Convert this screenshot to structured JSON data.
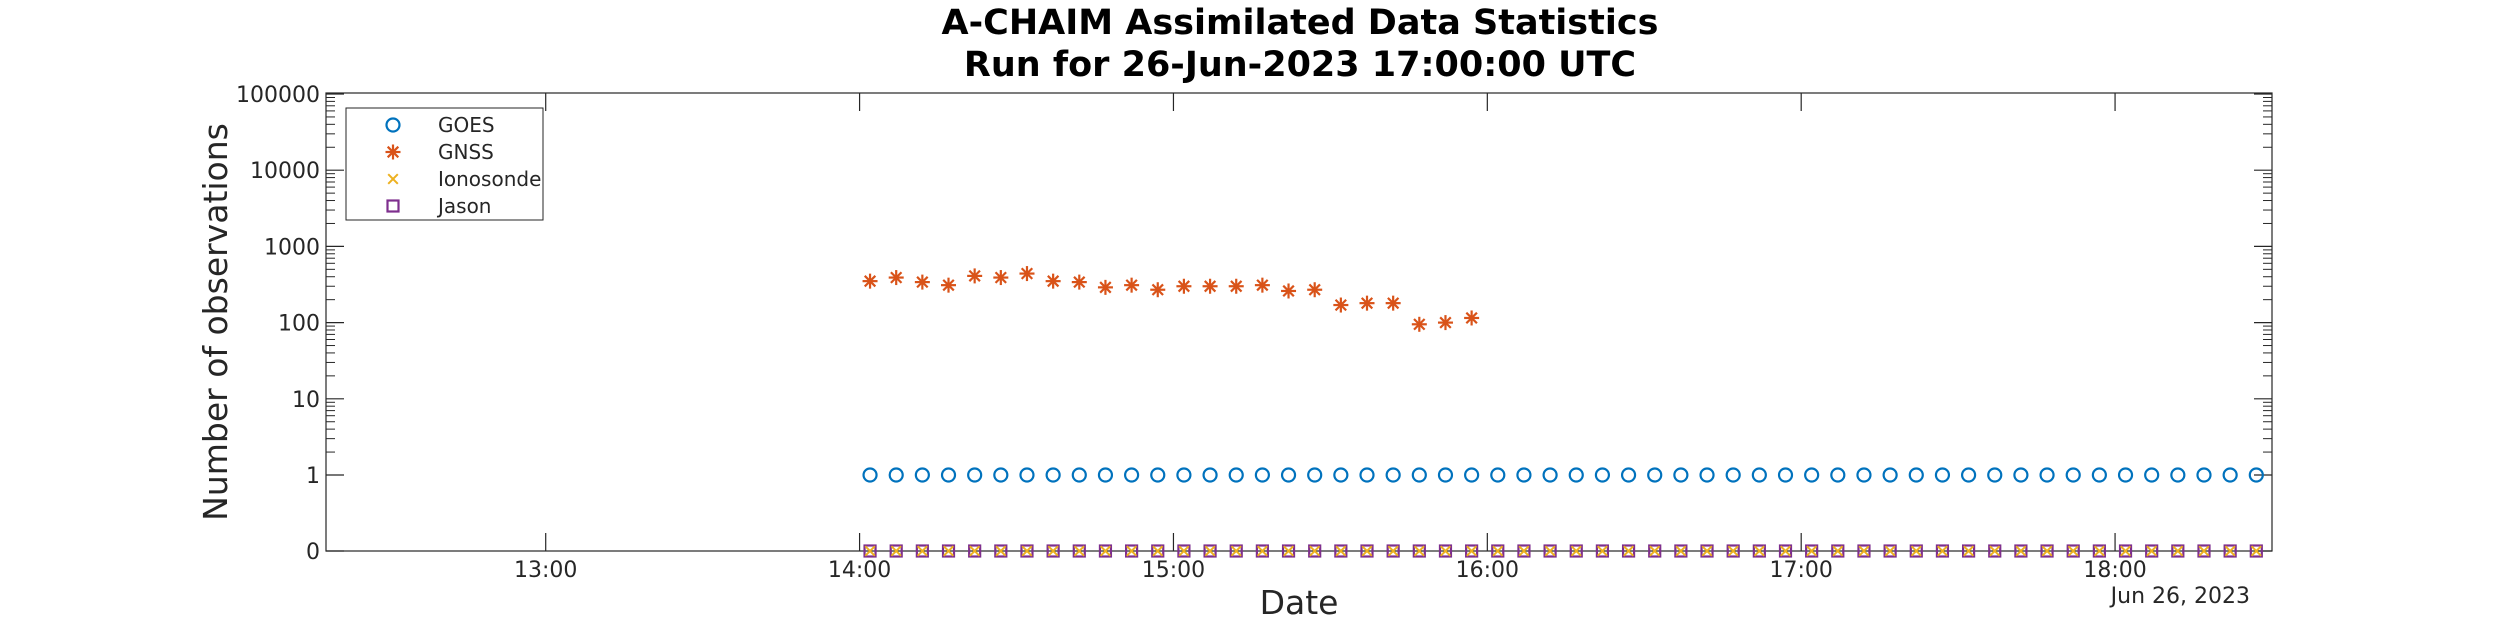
{
  "chart_data": {
    "type": "scatter",
    "title": [
      "A-CHAIM Assimilated Data Statistics",
      "Run for 26-Jun-2023 17:00:00 UTC"
    ],
    "xlabel": "Date",
    "ylabel": "Number of observations",
    "x_axis": {
      "type": "time",
      "range": [
        "12:18",
        "18:30"
      ],
      "ticks": [
        "13:00",
        "14:00",
        "15:00",
        "16:00",
        "17:00",
        "18:00"
      ],
      "date_label": "Jun 26, 2023"
    },
    "y_axis": {
      "scale": "log",
      "tick_labels": [
        "0",
        "1",
        "10",
        "100",
        "1000",
        "10000",
        "100000"
      ]
    },
    "grid": false,
    "legend": {
      "placement": "top-left",
      "entries": [
        "GOES",
        "GNSS",
        "Ionosonde",
        "Jason"
      ]
    },
    "series": [
      {
        "name": "GOES",
        "marker": "circle",
        "color": "#0072BD",
        "time_range": [
          "14:02",
          "18:30"
        ],
        "interval_minutes": 5,
        "value": 1
      },
      {
        "name": "GNSS",
        "marker": "asterisk",
        "color": "#D95319",
        "x": [
          "14:02",
          "14:07",
          "14:12",
          "14:17",
          "14:22",
          "14:27",
          "14:32",
          "14:37",
          "14:42",
          "14:47",
          "14:52",
          "14:57",
          "15:02",
          "15:07",
          "15:12",
          "15:17",
          "15:22",
          "15:27",
          "15:32",
          "15:37",
          "15:42",
          "15:47",
          "15:52",
          "15:57"
        ],
        "y": [
          350,
          390,
          340,
          310,
          410,
          390,
          440,
          350,
          340,
          290,
          310,
          270,
          300,
          300,
          300,
          310,
          260,
          270,
          170,
          180,
          180,
          95,
          100,
          115
        ]
      },
      {
        "name": "Ionosonde",
        "marker": "x",
        "color": "#EDB120",
        "time_range": [
          "14:02",
          "18:30"
        ],
        "interval_minutes": 5,
        "value": 0
      },
      {
        "name": "Jason",
        "marker": "square",
        "color": "#7E2F8E",
        "time_range": [
          "14:02",
          "18:30"
        ],
        "interval_minutes": 5,
        "value": 0
      }
    ]
  }
}
